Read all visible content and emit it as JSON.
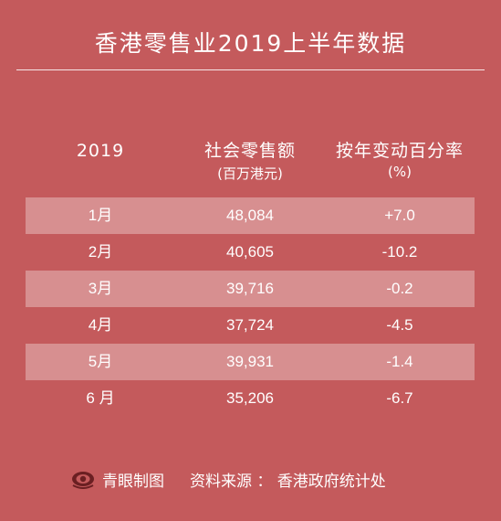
{
  "title": "香港零售业2019上半年数据",
  "header": {
    "year": "2019",
    "sales_label": "社会零售额",
    "sales_unit": "(百万港元)",
    "change_label": "按年变动百分率",
    "change_unit": "(%)"
  },
  "rows": [
    {
      "month": "1月",
      "sales": "48,084",
      "change": "+7.0"
    },
    {
      "month": "2月",
      "sales": "40,605",
      "change": "-10.2"
    },
    {
      "month": "3月",
      "sales": "39,716",
      "change": "-0.2"
    },
    {
      "month": "4月",
      "sales": "37,724",
      "change": "-4.5"
    },
    {
      "month": "5月",
      "sales": "39,931",
      "change": "-1.4"
    },
    {
      "month": "6 月",
      "sales": "35,206",
      "change": "-6.7"
    }
  ],
  "footer": {
    "brand": "青眼制图",
    "source": "资料来源 ： 香港政府统计处"
  },
  "colors": {
    "background": "#c45a5c",
    "row_shade": "#d98c8d",
    "text": "#ffffff",
    "logo_dark": "#6b1f22"
  }
}
